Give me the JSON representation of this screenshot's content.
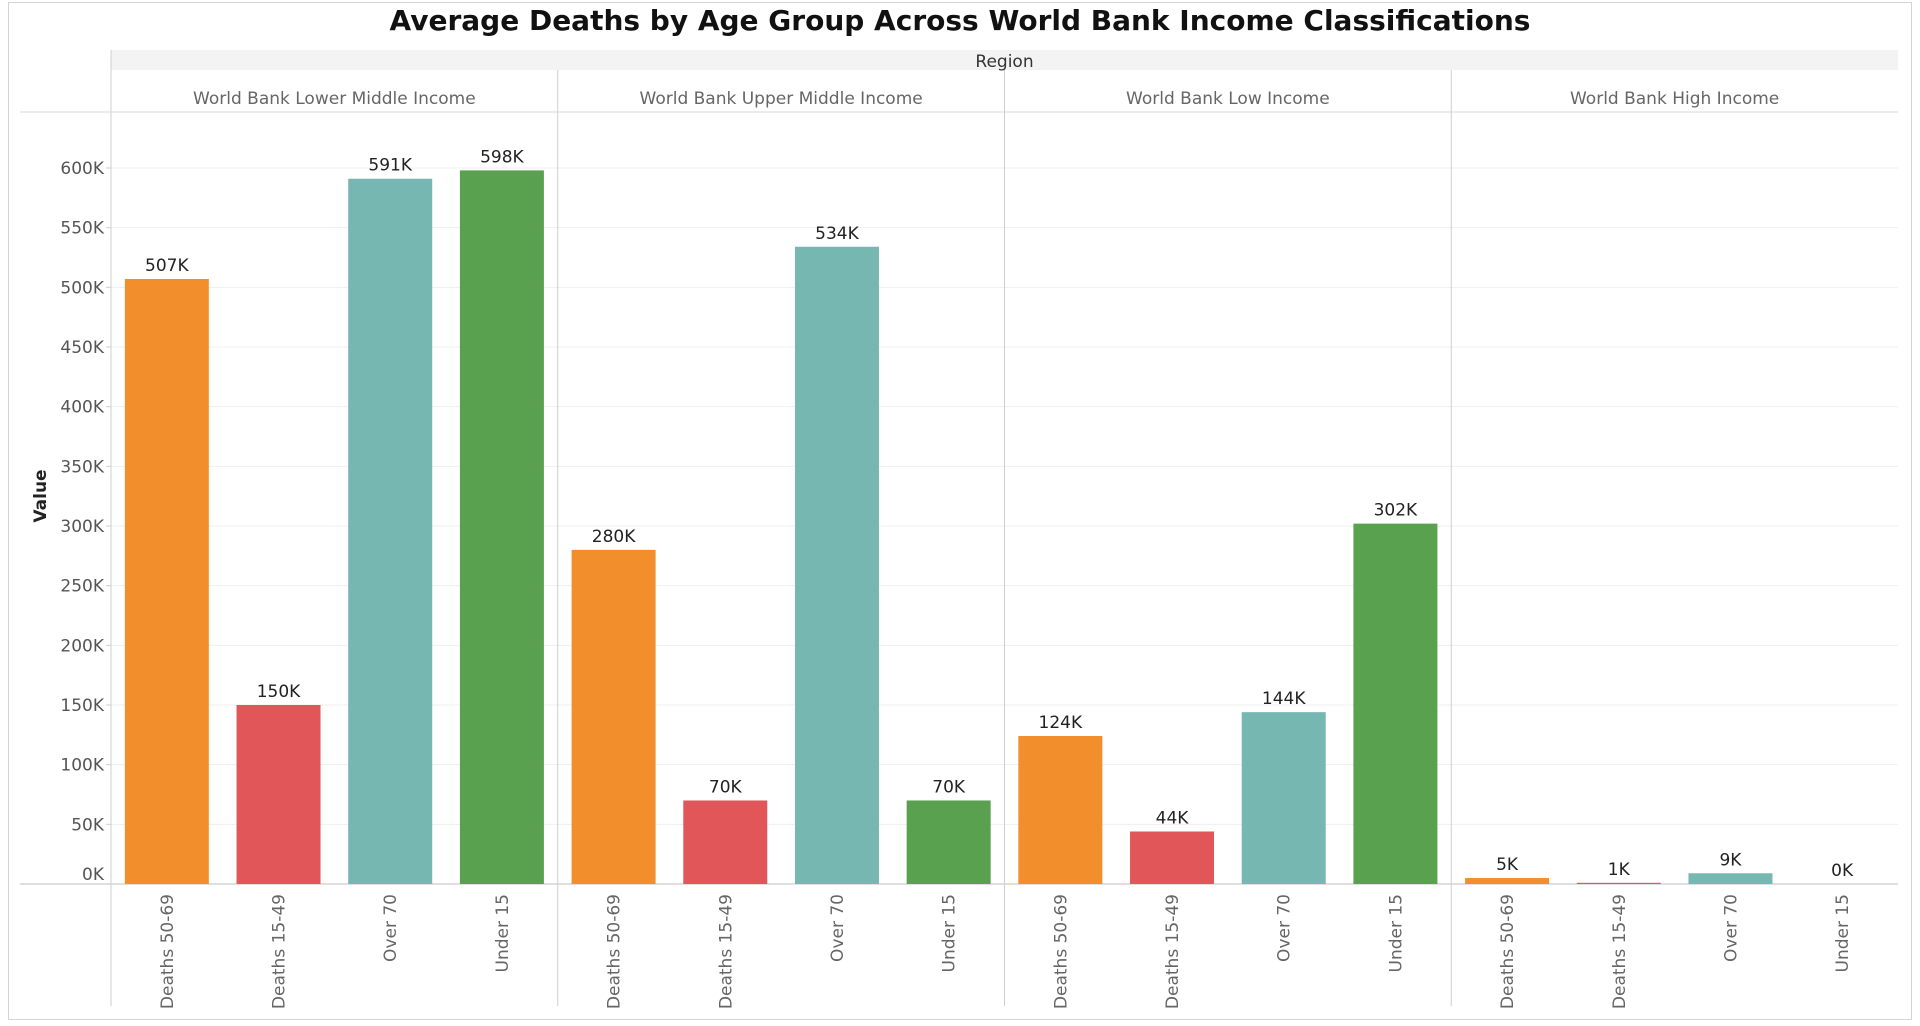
{
  "chart_data": {
    "type": "bar",
    "title": "Average Deaths by Age Group Across World Bank Income Classifications",
    "column_header": "Region",
    "ylabel": "Value",
    "ylim": [
      0,
      650000
    ],
    "yticks": [
      {
        "value": 0,
        "label": "0K"
      },
      {
        "value": 50000,
        "label": "50K"
      },
      {
        "value": 100000,
        "label": "100K"
      },
      {
        "value": 150000,
        "label": "150K"
      },
      {
        "value": 200000,
        "label": "200K"
      },
      {
        "value": 250000,
        "label": "250K"
      },
      {
        "value": 300000,
        "label": "300K"
      },
      {
        "value": 350000,
        "label": "350K"
      },
      {
        "value": 400000,
        "label": "400K"
      },
      {
        "value": 450000,
        "label": "450K"
      },
      {
        "value": 500000,
        "label": "500K"
      },
      {
        "value": 550000,
        "label": "550K"
      },
      {
        "value": 600000,
        "label": "600K"
      }
    ],
    "grid": true,
    "categories": [
      "Deaths 50-69",
      "Deaths 15-49",
      "Over 70",
      "Under 15"
    ],
    "category_colors": [
      "#f28e2b",
      "#e15759",
      "#76b7b2",
      "#59a14f"
    ],
    "panels": [
      {
        "name": "World Bank Lower Middle Income",
        "values": [
          507000,
          150000,
          591000,
          598000
        ],
        "labels": [
          "507K",
          "150K",
          "591K",
          "598K"
        ]
      },
      {
        "name": "World Bank Upper Middle Income",
        "values": [
          280000,
          70000,
          534000,
          70000
        ],
        "labels": [
          "280K",
          "70K",
          "534K",
          "70K"
        ]
      },
      {
        "name": "World Bank Low Income",
        "values": [
          124000,
          44000,
          144000,
          302000
        ],
        "labels": [
          "124K",
          "44K",
          "144K",
          "302K"
        ]
      },
      {
        "name": "World Bank High Income",
        "values": [
          5000,
          1000,
          9000,
          0
        ],
        "labels": [
          "5K",
          "1K",
          "9K",
          "0K"
        ]
      }
    ]
  }
}
